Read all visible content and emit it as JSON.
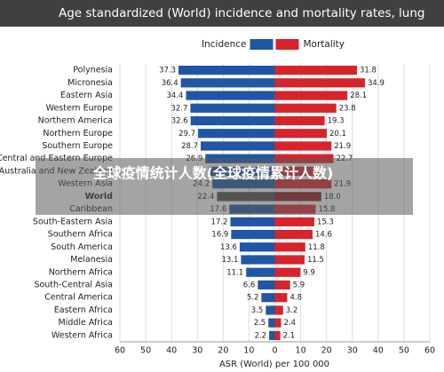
{
  "chart_data": {
    "type": "diverging-bar",
    "title": "Age standardized (World) incidence and mortality rates, lung",
    "x_label": "ASR (World) per 100 000",
    "overlay_text": "全球疫情统计人数(全球疫情累计人数)",
    "categories": [
      "Polynesia",
      "Micronesia",
      "Eastern Asia",
      "Western Europe",
      "Northern America",
      "Northern Europe",
      "Southern Europe",
      "Central and Eastern Europe",
      "Australia and New Zealand",
      "Western Asia",
      "World",
      "Caribbean",
      "South-Eastern Asia",
      "Southern Africa",
      "South America",
      "Melanesia",
      "Northern Africa",
      "South-Central Asia",
      "Central America",
      "Eastern Africa",
      "Middle Africa",
      "Western Africa"
    ],
    "highlight": "World",
    "series": [
      {
        "name": "Incidence",
        "side": "left",
        "color": "#2156a5",
        "highlight_color": "#4d4d4d",
        "values": [
          37.3,
          36.4,
          34.4,
          32.7,
          32.6,
          29.7,
          28.7,
          26.9,
          25.5,
          24.2,
          22.4,
          17.6,
          17.2,
          16.9,
          13.6,
          13.1,
          11.1,
          6.6,
          5.2,
          3.5,
          2.5,
          2.2
        ],
        "value_labels": [
          "37.3",
          "36.4",
          "34.4",
          "32.7",
          "32.6",
          "29.7",
          "28.7",
          "26.9",
          null,
          "24.2",
          "22.4",
          "17.6",
          "17.2",
          "16.9",
          "13.6",
          "13.1",
          "11.1",
          "6.6",
          "5.2",
          "3.5",
          "2.5",
          "2.2"
        ]
      },
      {
        "name": "Mortality",
        "side": "right",
        "color": "#d7242b",
        "highlight_color": "#8e1a1d",
        "values": [
          31.8,
          34.9,
          28.1,
          23.8,
          19.3,
          20.1,
          21.9,
          22.7,
          17.5,
          21.9,
          18.0,
          15.8,
          15.3,
          14.6,
          11.8,
          11.5,
          9.9,
          5.9,
          4.8,
          3.2,
          2.4,
          2.1
        ],
        "value_labels": [
          "31.8",
          "34.9",
          "28.1",
          "23.8",
          "19.3",
          "20.1",
          "21.9",
          "22.7",
          null,
          "21.9",
          "18.0",
          "15.8",
          "15.3",
          "14.6",
          "11.8",
          "11.5",
          "9.9",
          "5.9",
          "4.8",
          "3.2",
          "2.4",
          "2.1"
        ]
      }
    ],
    "xlim": [
      -60,
      60
    ],
    "xticks": [
      {
        "value": -60,
        "label": "60"
      },
      {
        "value": -50,
        "label": "50"
      },
      {
        "value": -40,
        "label": "40"
      },
      {
        "value": -30,
        "label": "30"
      },
      {
        "value": -20,
        "label": "20"
      },
      {
        "value": -10,
        "label": "10"
      },
      0,
      10,
      20,
      30,
      40,
      50,
      60
    ],
    "grid": true
  }
}
